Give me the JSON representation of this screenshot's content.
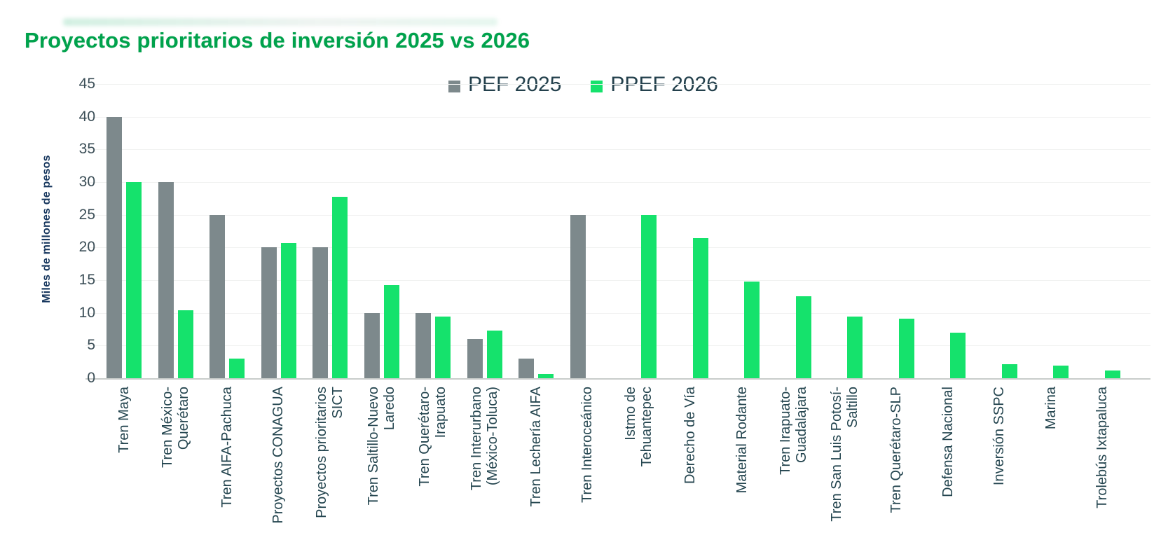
{
  "chart_data": {
    "type": "bar",
    "title": "Proyectos prioritarios de inversión 2025 vs 2026",
    "ylabel": "Miles de millones de pesos",
    "ylim": [
      0,
      45
    ],
    "ytick_step": 5,
    "grid": true,
    "legend_position": "top-center",
    "categories": [
      "Tren Maya",
      "Tren México-\nQuerétaro",
      "Tren AIFA-Pachuca",
      "Proyectos CONAGUA",
      "Proyectos prioritarios\nSICT",
      "Tren Saltillo-Nuevo\nLaredo",
      "Tren Querétaro-\nIrapuato",
      "Tren Interurbano\n(México-Toluca)",
      "Tren Lechería AIFA",
      "Tren Interoceánico",
      "Istmo de\nTehuantepec",
      "Derecho de Vía",
      "Material Rodante",
      "Tren Irapuato-\nGuadalajara",
      "Tren San Luis Potosí-\nSaltillo",
      "Tren Querétaro-SLP",
      "Defensa Nacional",
      "Inversión SSPC",
      "Marina",
      "Trolebús Ixtapaluca"
    ],
    "series": [
      {
        "name": "PEF 2025",
        "color": "#7d898c",
        "values": [
          40,
          30,
          25,
          20,
          20,
          10,
          10,
          6,
          3,
          25,
          0,
          0,
          0,
          0,
          0,
          0,
          0,
          0,
          0,
          0
        ]
      },
      {
        "name": "PPEF 2026",
        "color": "#15e26c",
        "values": [
          30,
          10.4,
          3,
          20.7,
          27.7,
          14.3,
          9.4,
          7.3,
          0.6,
          0,
          25,
          21.4,
          14.8,
          12.5,
          9.4,
          9.1,
          7,
          2.1,
          1.9,
          1.2
        ]
      }
    ],
    "yticks": [
      0,
      5,
      10,
      15,
      20,
      25,
      30,
      35,
      40,
      45
    ]
  }
}
